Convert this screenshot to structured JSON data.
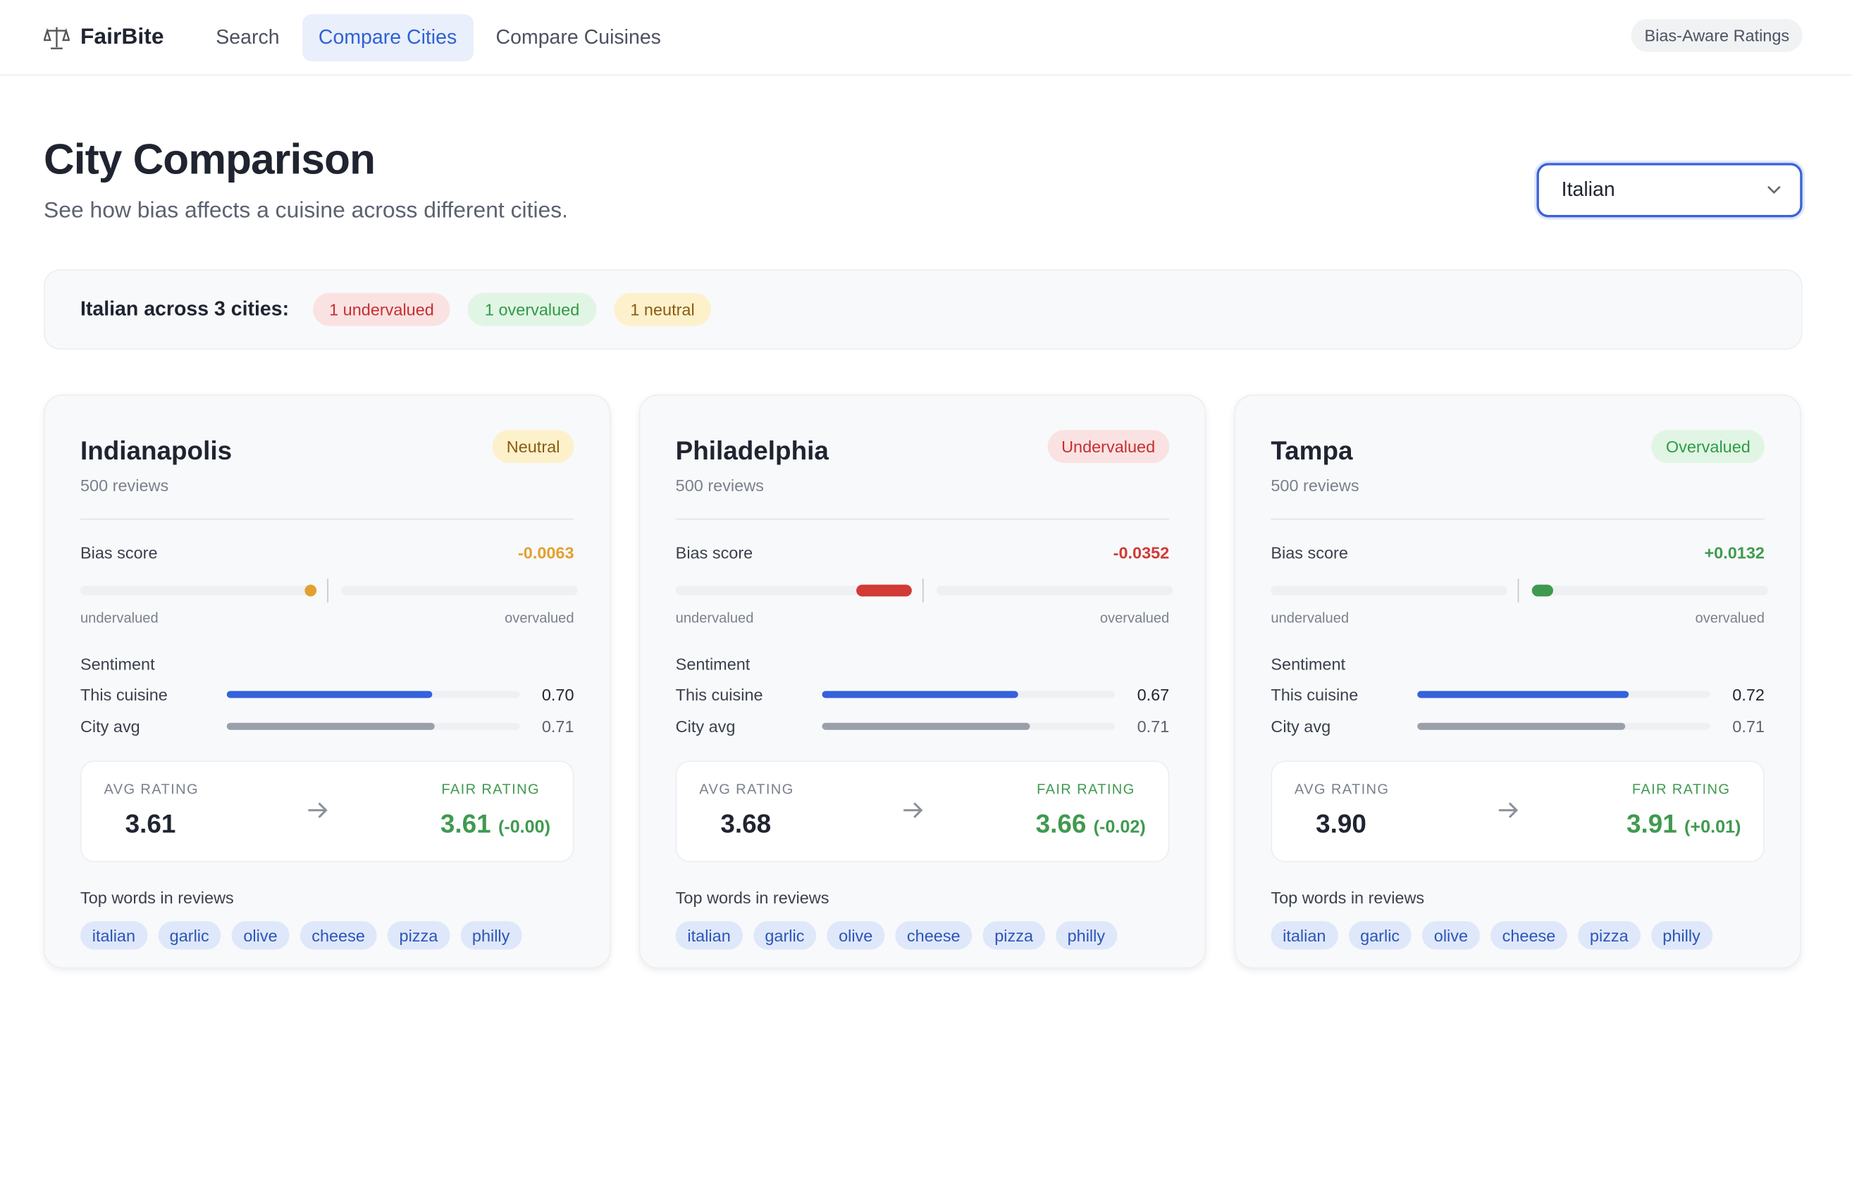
{
  "nav": {
    "brand": "FairBite",
    "links": [
      "Search",
      "Compare Cities",
      "Compare Cuisines"
    ],
    "active": 1,
    "badge": "Bias-Aware Ratings"
  },
  "header": {
    "title": "City Comparison",
    "subtitle": "See how bias affects a cuisine across different cities.",
    "select": "Italian"
  },
  "summary": {
    "label": "Italian across 3 cities:",
    "pills": [
      "1 undervalued",
      "1 overvalued",
      "1 neutral"
    ]
  },
  "labels": {
    "bias": "Bias score",
    "under": "undervalued",
    "over": "overvalued",
    "sentiment": "Sentiment",
    "cuisine": "This cuisine",
    "city_avg": "City avg",
    "avg_rating": "AVG RATING",
    "fair_rating": "FAIR RATING",
    "top_words": "Top words in reviews"
  },
  "cards": [
    {
      "city": "Indianapolis",
      "status": "Neutral",
      "reviews": "500 reviews",
      "bias": "-0.0063",
      "sent_cuisine": "0.70",
      "sent_city": "0.71",
      "avg": "3.61",
      "fair": "3.61",
      "fair_delta": "(-0.00)",
      "words": [
        "italian",
        "garlic",
        "olive",
        "cheese",
        "pizza",
        "philly"
      ]
    },
    {
      "city": "Philadelphia",
      "status": "Undervalued",
      "reviews": "500 reviews",
      "bias": "-0.0352",
      "sent_cuisine": "0.67",
      "sent_city": "0.71",
      "avg": "3.68",
      "fair": "3.66",
      "fair_delta": "(-0.02)",
      "words": [
        "italian",
        "garlic",
        "olive",
        "cheese",
        "pizza",
        "philly"
      ]
    },
    {
      "city": "Tampa",
      "status": "Overvalued",
      "reviews": "500 reviews",
      "bias": "+0.0132",
      "sent_cuisine": "0.72",
      "sent_city": "0.71",
      "avg": "3.90",
      "fair": "3.91",
      "fair_delta": "(+0.01)",
      "words": [
        "italian",
        "garlic",
        "olive",
        "cheese",
        "pizza",
        "philly"
      ]
    }
  ]
}
